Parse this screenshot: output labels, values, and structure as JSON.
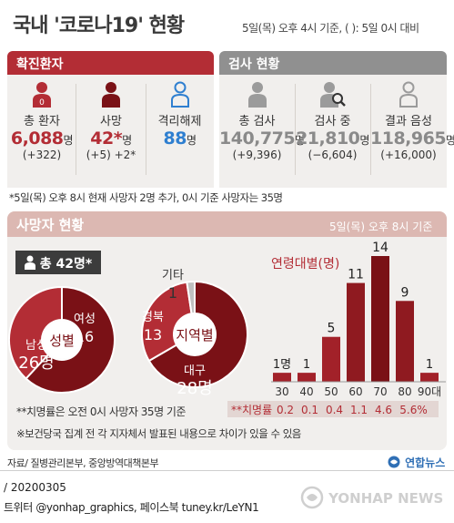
{
  "header": {
    "title": "국내 '코로나19' 현황",
    "subtitle": "5일(목) 오후 4시 기준, ( ): 5일 0시 대비"
  },
  "confirmed": {
    "header": "확진환자",
    "stats": [
      {
        "label": "총 환자",
        "value": "6,088",
        "unit": "명",
        "change": "(+322)",
        "icon": "person-icon",
        "color": "#b32d35"
      },
      {
        "label": "사망",
        "value": "42*",
        "unit": "명",
        "change": "(+5) +2*",
        "icon": "person-icon",
        "color": "#b32d35"
      },
      {
        "label": "격리해제",
        "value": "88",
        "unit": "명",
        "change": "",
        "icon": "person-outline-icon",
        "color": "#2f7fd0"
      }
    ]
  },
  "tests": {
    "header": "검사 현황",
    "stats": [
      {
        "label": "총 검사",
        "value": "140,775",
        "unit": "명",
        "change": "(+9,396)",
        "icon": "person-icon"
      },
      {
        "label": "검사 중",
        "value": "21,810",
        "unit": "명",
        "change": "(−6,604)",
        "icon": "person-magnifier-icon"
      },
      {
        "label": "결과 음성",
        "value": "118,965",
        "unit": "명",
        "change": "(+16,000)",
        "icon": "person-outline-icon"
      }
    ]
  },
  "notes": {
    "death_note": "*5일(목) 오후 8시 현재 사망자 2명 추가, 0시 기준 사망자는 35명",
    "fatality_note": "**치명률은 오전 0시 사망자 35명 기준",
    "diff_note": "※보건당국 집계 전 각 지자체서 발표된 내용으로 차이가 있을 수 있음",
    "source": "자료/ 질병관리본부, 중앙방역대책본부",
    "date_code": "/ 20200305",
    "social": "트위터 @yonhap_graphics, 페이스북 tuney.kr/LeYN1"
  },
  "deaths": {
    "header": "사망자 현황",
    "header_time": "5일(목) 오후 8시 기준",
    "total_badge": "총 42명*"
  },
  "brand": {
    "logo_text": "연합뉴스",
    "watermark": "YONHAP NEWS"
  },
  "colors": {
    "dark_red": "#7a1116",
    "mid_red": "#b32d35",
    "light_gray": "#c0c0c0",
    "blue": "#2f7fd0"
  },
  "chart_data": [
    {
      "type": "pie",
      "title": "",
      "center_label": "성별",
      "slices": [
        {
          "label": "남성",
          "value": 26,
          "display": "26명",
          "color": "#7a1116"
        },
        {
          "label": "여성",
          "value": 16,
          "display": "16",
          "color": "#b32d35"
        }
      ]
    },
    {
      "type": "pie",
      "title": "",
      "center_label": "지역별",
      "slices": [
        {
          "label": "대구",
          "value": 28,
          "display": "28명",
          "color": "#7a1116"
        },
        {
          "label": "경북",
          "value": 13,
          "display": "13",
          "color": "#b32d35"
        },
        {
          "label": "기타",
          "value": 1,
          "display": "1",
          "color": "#c0c0c0"
        }
      ]
    },
    {
      "type": "bar",
      "title": "연령대별(명)",
      "categories": [
        "30",
        "40",
        "50",
        "60",
        "70",
        "80",
        "90대"
      ],
      "values": [
        1,
        1,
        5,
        11,
        14,
        9,
        1
      ],
      "value_labels": [
        "1명",
        "1",
        "5",
        "11",
        "14",
        "9",
        "1"
      ],
      "fatality_label": "**치명률",
      "fatality_rates": [
        "0.2",
        "0.1",
        "0.4",
        "1.1",
        "4.6",
        "5.6%"
      ],
      "ylim": [
        0,
        14
      ]
    }
  ]
}
